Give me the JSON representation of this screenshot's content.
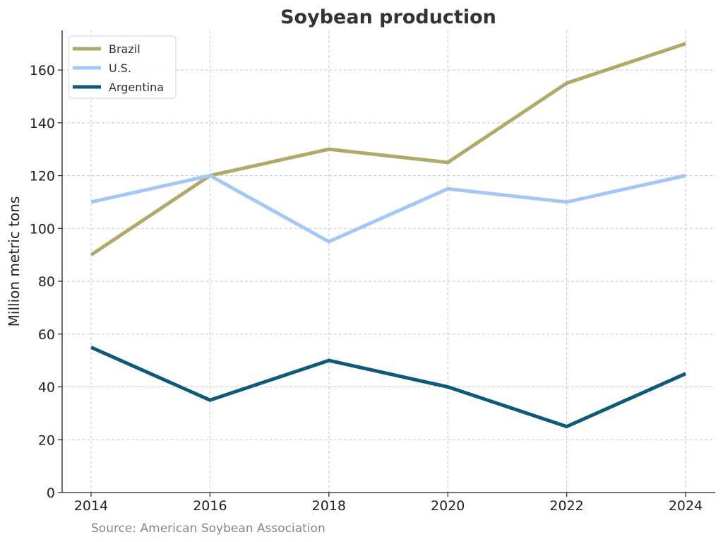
{
  "chart_data": {
    "type": "line",
    "title": "Soybean production",
    "xlabel": "",
    "ylabel": "Million metric tons",
    "x": [
      2014,
      2016,
      2018,
      2020,
      2022,
      2024
    ],
    "xticks": [
      "2014",
      "2016",
      "2018",
      "2020",
      "2022",
      "2024"
    ],
    "ylim": [
      0,
      175
    ],
    "yticks": [
      0,
      20,
      40,
      60,
      80,
      100,
      120,
      140,
      160
    ],
    "grid": true,
    "legend_position": "top-left",
    "series": [
      {
        "name": "Brazil",
        "color": "#b0a96a",
        "values": [
          90,
          120,
          130,
          125,
          155,
          170
        ]
      },
      {
        "name": "U.S.",
        "color": "#a3c8f5",
        "values": [
          110,
          120,
          95,
          115,
          110,
          120
        ]
      },
      {
        "name": "Argentina",
        "color": "#0e5a78",
        "values": [
          55,
          35,
          50,
          40,
          25,
          45
        ]
      }
    ],
    "source": "Source: American Soybean Association"
  }
}
